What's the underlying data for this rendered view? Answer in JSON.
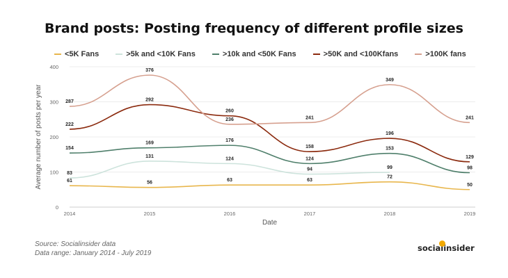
{
  "chart_data": {
    "type": "line",
    "title": "Brand posts: Posting frequency of different profile sizes",
    "xlabel": "Date",
    "ylabel": "Average number of posts per year",
    "x": [
      "2014",
      "2015",
      "2016",
      "2017",
      "2018",
      "2019"
    ],
    "ylim": [
      0,
      400
    ],
    "yticks": [
      "0",
      "100",
      "200",
      "300",
      "400"
    ],
    "grid": true,
    "legend_position": "top",
    "series": [
      {
        "name": "<5K Fans",
        "color": "#e8b64c",
        "values": [
          61,
          56,
          63,
          63,
          72,
          50
        ]
      },
      {
        "name": ">5k and <10K Fans",
        "color": "#cde3dc",
        "values": [
          83,
          131,
          124,
          94,
          99,
          null
        ]
      },
      {
        "name": ">10k and <50K Fans",
        "color": "#4f7f6b",
        "values": [
          154,
          169,
          176,
          124,
          153,
          98
        ]
      },
      {
        "name": ">50K and <100Kfans",
        "color": "#8b2a0e",
        "values": [
          222,
          292,
          260,
          158,
          196,
          129
        ]
      },
      {
        "name": ">100K fans",
        "color": "#d6a08f",
        "values": [
          287,
          376,
          236,
          241,
          349,
          241
        ]
      }
    ]
  },
  "footer": {
    "source": "Source: Socialinsider data",
    "range": "Data range: January 2014 - July 2019"
  },
  "brand": "socialinsider"
}
